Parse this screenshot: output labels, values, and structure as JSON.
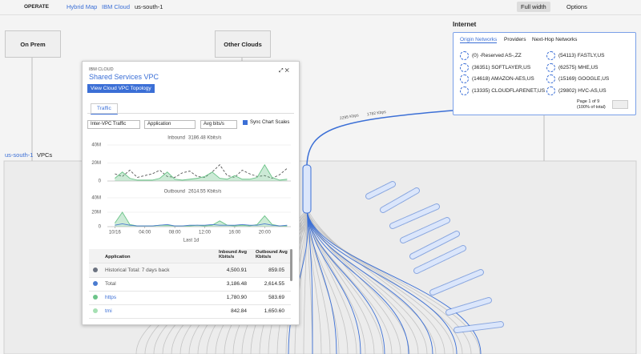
{
  "topbar": {
    "brand": "OPERATE",
    "breadcrumbs": [
      "Hybrid Map",
      "IBM Cloud",
      "us-south-1"
    ],
    "buttons": [
      "Full width",
      "Options"
    ]
  },
  "map": {
    "nodes": [
      "On Prem",
      "Other Clouds"
    ],
    "link_labels": [
      "2295 Kbps",
      "1782 Kbps"
    ],
    "region_name": "us-south-1",
    "region_suffix": "VPCs"
  },
  "internet": {
    "title": "Internet",
    "tabs": [
      "Origin Networks",
      "Providers",
      "Next-Hop Networks"
    ],
    "networks": [
      "(0) -Reserved AS-,ZZ",
      "(54113) FASTLY,US",
      "(36351) SOFTLAYER,US",
      "(62575) MHE,US",
      "(14618) AMAZON-AES,US",
      "(15169) GOOGLE,US",
      "(13335) CLOUDFLARENET,US",
      "(29802) HVC-AS,US"
    ],
    "pagination": "Page 1 of 9",
    "share": "(100% of total)"
  },
  "panel": {
    "eyebrow": "IBM CLOUD",
    "title": "Shared Services VPC",
    "button": "View Cloud VPC Topology",
    "tab": "Traffic",
    "selects": [
      "Inter-VPC Traffic",
      "Application",
      "Avg bits/s"
    ],
    "checkbox": "Sync Chart Scales"
  },
  "chart_data": [
    {
      "type": "line",
      "title": "Inbound",
      "total": "3186.48 Kbits/s",
      "x": [
        0,
        1,
        2,
        3,
        4,
        5,
        6,
        7,
        8,
        9,
        10,
        11,
        12,
        13,
        14,
        15,
        16,
        17,
        18,
        19,
        20,
        21,
        22,
        23
      ],
      "xlim": [
        -1,
        23.5
      ],
      "ylim": [
        0,
        40
      ],
      "yticks": [
        {
          "value": 40,
          "label": "40M"
        },
        {
          "value": 20,
          "label": "20M"
        },
        0
      ],
      "grid": true,
      "series": [
        {
          "color": "#555555",
          "dash": true,
          "area": false,
          "values": [
            8,
            5,
            12,
            4,
            6,
            8,
            12,
            5,
            4,
            9,
            11,
            5,
            4,
            10,
            18,
            6,
            4,
            12,
            8,
            5,
            6,
            3,
            7,
            14
          ]
        },
        {
          "color": "#6cc489",
          "dash": false,
          "area": true,
          "values": [
            3,
            10,
            3,
            1,
            1,
            1,
            3,
            10,
            2,
            1,
            2,
            3,
            5,
            10,
            3,
            2,
            6,
            2,
            2,
            4,
            18,
            4,
            1,
            2
          ]
        }
      ]
    },
    {
      "type": "line",
      "title": "Outbound",
      "total": "2614.55 Kbits/s",
      "x": [
        0,
        1,
        2,
        3,
        4,
        5,
        6,
        7,
        8,
        9,
        10,
        11,
        12,
        13,
        14,
        15,
        16,
        17,
        18,
        19,
        20,
        21,
        22,
        23
      ],
      "xlim": [
        -1,
        23.5
      ],
      "ylim": [
        0,
        40
      ],
      "yticks": [
        {
          "value": 40,
          "label": "40M"
        },
        {
          "value": 20,
          "label": "20M"
        },
        0
      ],
      "xticks": [
        {
          "value": 0,
          "label": "10/16"
        },
        {
          "value": 4,
          "label": "04:00"
        },
        {
          "value": 8,
          "label": "08:00"
        },
        {
          "value": 12,
          "label": "12:00"
        },
        {
          "value": 16,
          "label": "16:00"
        },
        {
          "value": 20,
          "label": "20:00"
        }
      ],
      "xlabel": "Last 1d",
      "grid": true,
      "series": [
        {
          "color": "#6cc489",
          "dash": false,
          "area": true,
          "values": [
            5,
            20,
            3,
            1,
            1,
            1,
            2,
            2,
            1,
            1,
            1,
            2,
            1,
            2,
            8,
            2,
            1,
            2,
            1,
            3,
            15,
            3,
            1,
            1
          ]
        },
        {
          "color": "#4a7bd0",
          "dash": false,
          "area": false,
          "values": [
            2,
            4,
            2,
            1,
            1,
            1,
            2,
            3,
            1,
            1,
            2,
            2,
            2,
            3,
            2,
            2,
            2,
            3,
            2,
            2,
            4,
            2,
            1,
            2
          ]
        }
      ]
    }
  ],
  "table": {
    "columns": [
      "Application",
      "Inbound Avg Kbits/s",
      "Outbound Avg Kbits/s"
    ],
    "rows": [
      {
        "color": "#6b7280",
        "cells": [
          "Historical Total: 7 days back",
          "4,500.91",
          "859.05"
        ]
      },
      {
        "color": "#4a7bd0",
        "cells": [
          "Total",
          "3,186.48",
          "2,614.55"
        ]
      },
      {
        "color": "#6cc489",
        "cells": [
          "https",
          "1,780.90",
          "583.69"
        ]
      },
      {
        "color": "#a6e0b3",
        "cells": [
          "tmi",
          "842.84",
          "1,650.60"
        ]
      }
    ]
  }
}
